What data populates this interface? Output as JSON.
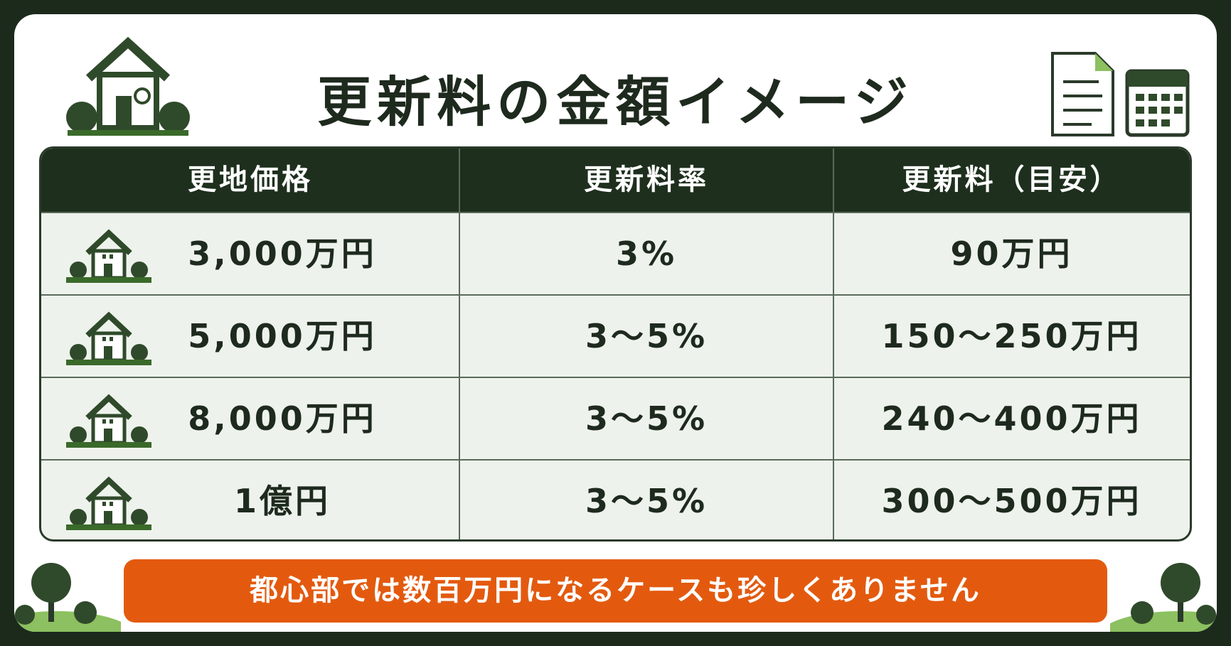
{
  "title": "更新料の金額イメージ",
  "table": {
    "headers": [
      "更地価格",
      "更新料率",
      "更新料（目安）"
    ],
    "rows": [
      [
        "3,000万円",
        "3%",
        "90万円"
      ],
      [
        "5,000万円",
        "3～5%",
        "150～250万円"
      ],
      [
        "8,000万円",
        "3～5%",
        "240～400万円"
      ],
      [
        "1億円",
        "3～5%",
        "300～500万円"
      ]
    ]
  },
  "note": "都心部では数百万円になるケースも珍しくありません"
}
